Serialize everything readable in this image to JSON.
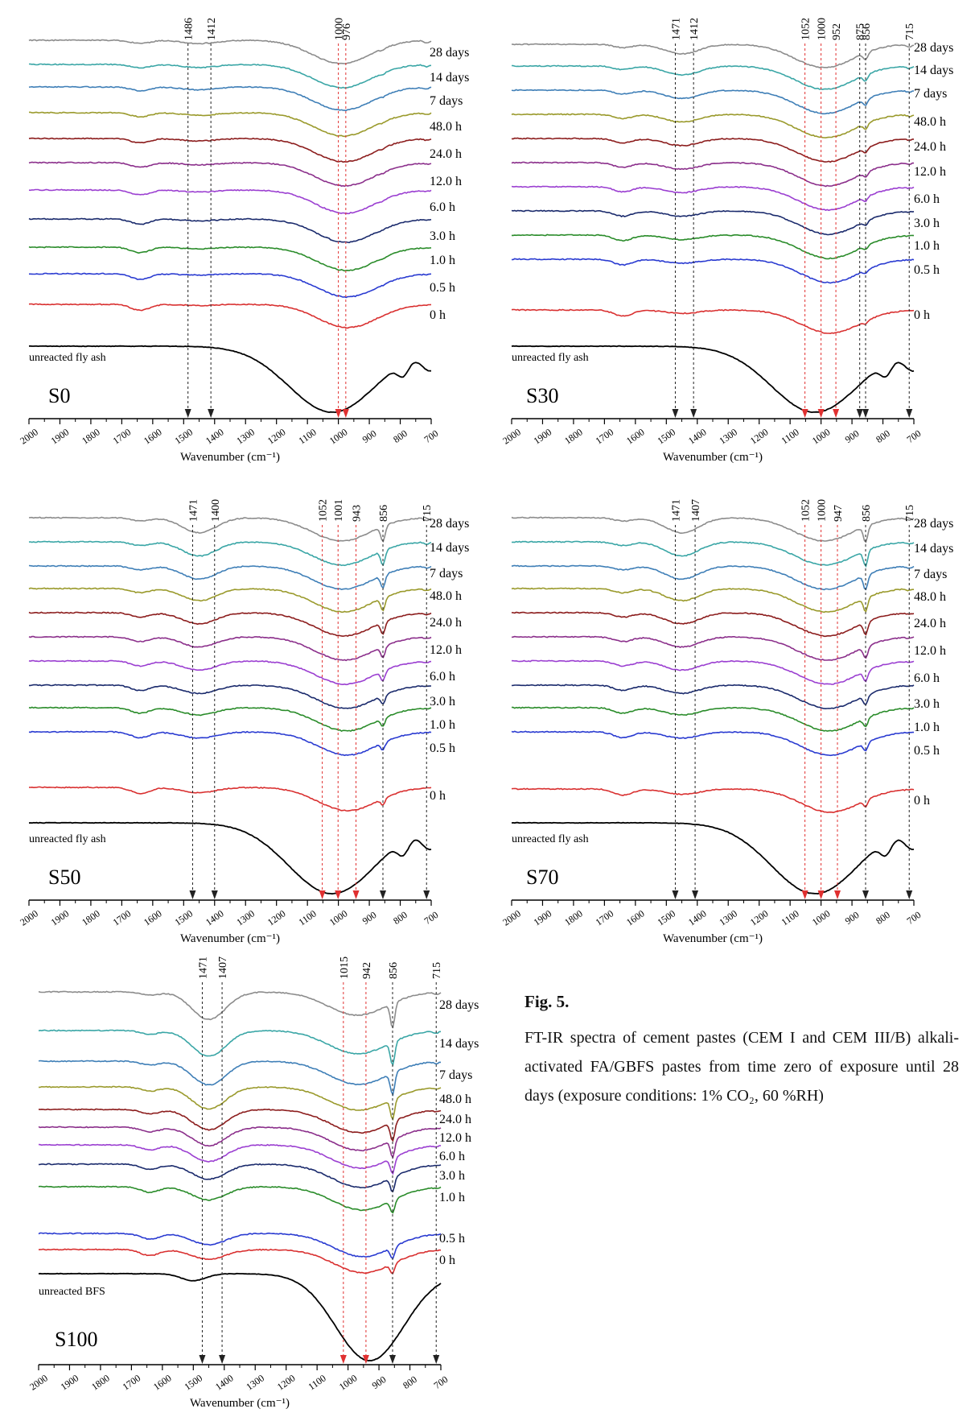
{
  "chart_data": [
    {
      "type": "line",
      "panel_label": "S0",
      "xlabel": "Wavenumber (cm⁻¹)",
      "x_range": [
        2000,
        700
      ],
      "x_ticks": [
        2000,
        1900,
        1800,
        1700,
        1600,
        1500,
        1400,
        1300,
        1200,
        1100,
        1000,
        900,
        800,
        700
      ],
      "reference_name": "unreacted fly ash",
      "series_labels": [
        "28 days",
        "14 days",
        "7 days",
        "48.0 h",
        "24.0 h",
        "12.0 h",
        "6.0 h",
        "3.0 h",
        "1.0 h",
        "0.5 h",
        "0 h"
      ],
      "markers": [
        {
          "value": 1486,
          "label": "1486",
          "color": "black"
        },
        {
          "value": 1412,
          "label": "1412",
          "color": "black"
        },
        {
          "value": 1000,
          "label": "1000",
          "color": "red"
        },
        {
          "value": 976,
          "label": "976",
          "color": "red"
        }
      ]
    },
    {
      "type": "line",
      "panel_label": "S30",
      "xlabel": "Wavenumber (cm⁻¹)",
      "x_range": [
        2000,
        700
      ],
      "x_ticks": [
        2000,
        1900,
        1800,
        1700,
        1600,
        1500,
        1400,
        1300,
        1200,
        1100,
        1000,
        900,
        800,
        700
      ],
      "reference_name": "unreacted fly ash",
      "series_labels": [
        "28 days",
        "14 days",
        "7 days",
        "48.0 h",
        "24.0 h",
        "12.0 h",
        "6.0 h",
        "3.0 h",
        "1.0 h",
        "0.5 h",
        "0 h"
      ],
      "markers": [
        {
          "value": 1471,
          "label": "1471",
          "color": "black"
        },
        {
          "value": 1412,
          "label": "1412",
          "color": "black"
        },
        {
          "value": 1052,
          "label": "1052",
          "color": "red"
        },
        {
          "value": 1000,
          "label": "1000",
          "color": "red"
        },
        {
          "value": 952,
          "label": "952",
          "color": "red"
        },
        {
          "value": 875,
          "label": "875",
          "color": "black"
        },
        {
          "value": 856,
          "label": "856",
          "color": "black"
        },
        {
          "value": 715,
          "label": "715",
          "color": "black"
        }
      ]
    },
    {
      "type": "line",
      "panel_label": "S50",
      "xlabel": "Wavenumber (cm⁻¹)",
      "x_range": [
        2000,
        700
      ],
      "x_ticks": [
        2000,
        1900,
        1800,
        1700,
        1600,
        1500,
        1400,
        1300,
        1200,
        1100,
        1000,
        900,
        800,
        700
      ],
      "reference_name": "unreacted fly ash",
      "series_labels": [
        "28 days",
        "14 days",
        "7 days",
        "48.0 h",
        "24.0 h",
        "12.0 h",
        "6.0 h",
        "3.0 h",
        "1.0 h",
        "0.5 h",
        "0 h"
      ],
      "markers": [
        {
          "value": 1471,
          "label": "1471",
          "color": "black"
        },
        {
          "value": 1400,
          "label": "1400",
          "color": "black"
        },
        {
          "value": 1052,
          "label": "1052",
          "color": "red"
        },
        {
          "value": 1001,
          "label": "1001",
          "color": "red"
        },
        {
          "value": 943,
          "label": "943",
          "color": "red"
        },
        {
          "value": 856,
          "label": "856",
          "color": "black"
        },
        {
          "value": 715,
          "label": "715",
          "color": "black"
        }
      ]
    },
    {
      "type": "line",
      "panel_label": "S70",
      "xlabel": "Wavenumber (cm⁻¹)",
      "x_range": [
        2000,
        700
      ],
      "x_ticks": [
        2000,
        1900,
        1800,
        1700,
        1600,
        1500,
        1400,
        1300,
        1200,
        1100,
        1000,
        900,
        800,
        700
      ],
      "reference_name": "unreacted fly ash",
      "series_labels": [
        "28 days",
        "14 days",
        "7 days",
        "48.0 h",
        "24.0 h",
        "12.0 h",
        "6.0 h",
        "3.0 h",
        "1.0 h",
        "0.5 h",
        "0 h"
      ],
      "markers": [
        {
          "value": 1471,
          "label": "1471",
          "color": "black"
        },
        {
          "value": 1407,
          "label": "1407",
          "color": "black"
        },
        {
          "value": 1052,
          "label": "1052",
          "color": "red"
        },
        {
          "value": 1000,
          "label": "1000",
          "color": "red"
        },
        {
          "value": 947,
          "label": "947",
          "color": "red"
        },
        {
          "value": 856,
          "label": "856",
          "color": "black"
        },
        {
          "value": 715,
          "label": "715",
          "color": "black"
        }
      ]
    },
    {
      "type": "line",
      "panel_label": "S100",
      "xlabel": "Wavenumber (cm⁻¹)",
      "x_range": [
        2000,
        700
      ],
      "x_ticks": [
        2000,
        1900,
        1800,
        1700,
        1600,
        1500,
        1400,
        1300,
        1200,
        1100,
        1000,
        900,
        800,
        700
      ],
      "reference_name": "unreacted BFS",
      "series_labels": [
        "28 days",
        "14 days",
        "7 days",
        "48.0 h",
        "24.0 h",
        "12.0 h",
        "6.0 h",
        "3.0 h",
        "1.0 h",
        "0.5 h",
        "0 h"
      ],
      "markers": [
        {
          "value": 1471,
          "label": "1471",
          "color": "black"
        },
        {
          "value": 1407,
          "label": "1407",
          "color": "black"
        },
        {
          "value": 1015,
          "label": "1015",
          "color": "red"
        },
        {
          "value": 942,
          "label": "942",
          "color": "red"
        },
        {
          "value": 856,
          "label": "856",
          "color": "black"
        },
        {
          "value": 715,
          "label": "715",
          "color": "black"
        }
      ]
    }
  ],
  "series_colors": [
    "#8c8c8c",
    "#3aa6a6",
    "#3f7fb7",
    "#9a9a2c",
    "#8c1d1d",
    "#8b2f8b",
    "#9b3fd1",
    "#1a2a6c",
    "#2a8c2a",
    "#2a3bd1",
    "#d93030"
  ],
  "reference_color": "#000000",
  "marker_colors": {
    "black": "#222222",
    "red": "#e03030"
  },
  "caption": {
    "title": "Fig. 5.",
    "body": "FT-IR spectra of cement pastes (CEM I and CEM III/B) alkali-activated FA/GBFS pastes from time zero of exposure until 28 days (exposure conditions: 1% CO₂, 60 %RH)"
  }
}
